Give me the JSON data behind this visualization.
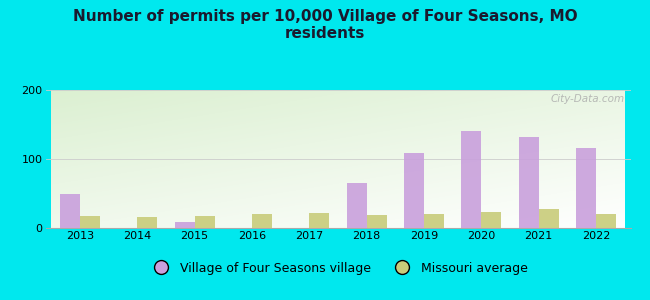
{
  "title": "Number of permits per 10,000 Village of Four Seasons, MO\nresidents",
  "years": [
    2013,
    2014,
    2015,
    2016,
    2017,
    2018,
    2019,
    2020,
    2021,
    2022
  ],
  "village_values": [
    50,
    0,
    8,
    0,
    0,
    65,
    108,
    140,
    132,
    116
  ],
  "missouri_values": [
    17,
    16,
    18,
    21,
    22,
    19,
    20,
    23,
    27,
    21
  ],
  "village_color": "#c9a0dc",
  "missouri_color": "#c8cc7a",
  "outer_bg": "#00e8ee",
  "ylim": [
    0,
    200
  ],
  "yticks": [
    0,
    100,
    200
  ],
  "bar_width": 0.35,
  "legend_village": "Village of Four Seasons village",
  "legend_missouri": "Missouri average",
  "title_fontsize": 11,
  "watermark": "City-Data.com"
}
